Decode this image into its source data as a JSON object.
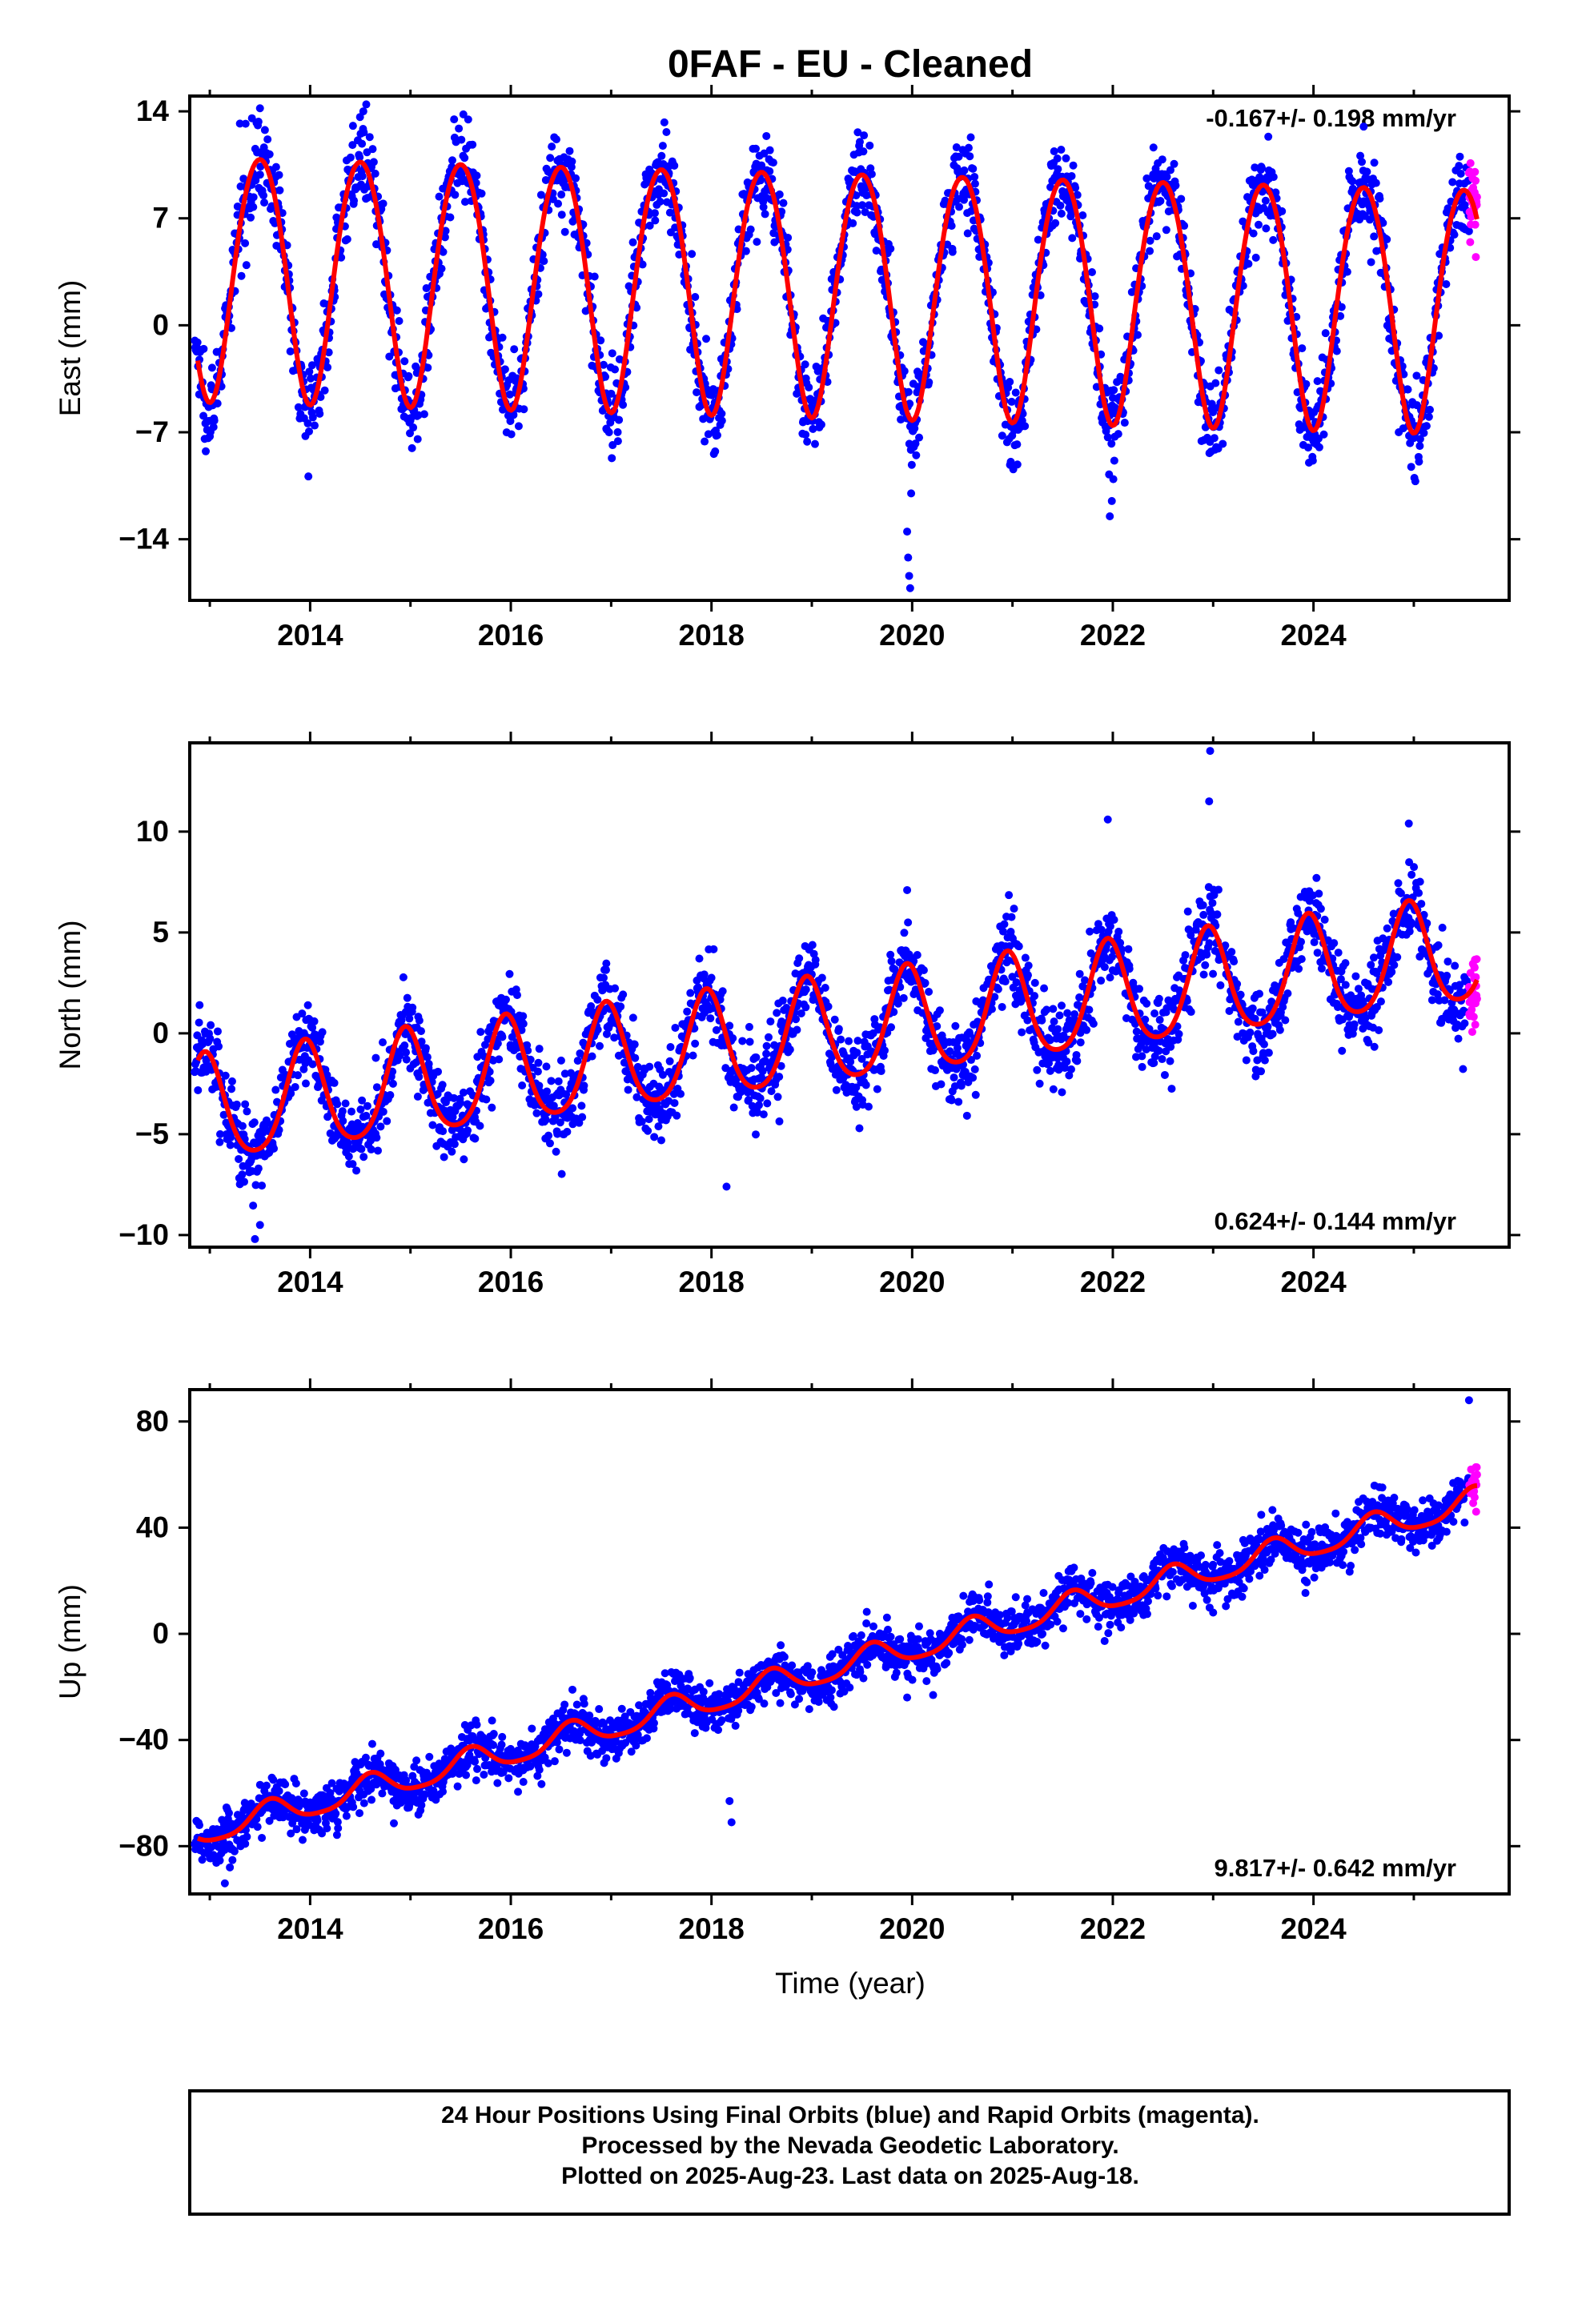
{
  "title": "0FAF  - EU - Cleaned",
  "footer": {
    "line1": "24 Hour Positions Using Final Orbits (blue) and Rapid Orbits (magenta).",
    "line2": "Processed by the Nevada Geodetic Laboratory.",
    "line3": "Plotted on 2025-Aug-23. Last data on 2025-Aug-18."
  },
  "colors": {
    "final_orbits": "#0000ff",
    "rapid_orbits": "#ff00ff",
    "model_fit": "#ff0000",
    "frame": "#000000"
  },
  "chart_data": [
    {
      "type": "scatter",
      "xlabel": "",
      "ylabel": "East (mm)",
      "xlim": [
        2012.8,
        2025.95
      ],
      "ylim": [
        -18,
        15
      ],
      "xticks": [
        2014,
        2016,
        2018,
        2020,
        2022,
        2024
      ],
      "yticks": [
        -14,
        -7,
        0,
        7,
        14
      ],
      "rate_label": "-0.167+/- 0.198 mm/yr",
      "rate_position": "top-right",
      "model": {
        "offset": 2.5,
        "trend": -0.167,
        "t0": 2019.2,
        "amp1": 8.0,
        "peak1": 0.5,
        "amp2": 0.6,
        "peak2": 0.25
      },
      "scatter": {
        "noise": 1.4,
        "points": 2400
      },
      "outliers": [
        {
          "x": 2019.95,
          "y": -13.5
        },
        {
          "x": 2019.96,
          "y": -15.2
        },
        {
          "x": 2019.97,
          "y": -16.4
        },
        {
          "x": 2019.98,
          "y": -17.2
        },
        {
          "x": 2019.99,
          "y": -11.0
        },
        {
          "x": 2021.97,
          "y": -12.5
        },
        {
          "x": 2021.99,
          "y": -11.5
        },
        {
          "x": 2013.3,
          "y": 13.2
        },
        {
          "x": 2013.5,
          "y": 14.2
        },
        {
          "x": 2014.53,
          "y": 14.0
        },
        {
          "x": 2024.5,
          "y": 13.0
        }
      ],
      "grid": false,
      "legend": "none"
    },
    {
      "type": "scatter",
      "xlabel": "",
      "ylabel": "North (mm)",
      "xlim": [
        2012.8,
        2025.95
      ],
      "ylim": [
        -10.6,
        14.4
      ],
      "xticks": [
        2014,
        2016,
        2018,
        2020,
        2022,
        2024
      ],
      "yticks": [
        -10,
        -5,
        0,
        5,
        10
      ],
      "rate_label": "0.624+/- 0.144 mm/yr",
      "rate_position": "bottom-right",
      "model": {
        "offset": 0.0,
        "trend": 0.624,
        "t0": 2019.2,
        "amp1": 2.6,
        "peak1": 0.95,
        "amp2": 0.4,
        "peak2": 0.45
      },
      "scatter": {
        "noise": 1.0,
        "points": 2400
      },
      "outliers": [
        {
          "x": 2013.45,
          "y": -10.2
        },
        {
          "x": 2013.5,
          "y": -9.5
        },
        {
          "x": 2021.95,
          "y": 10.6
        },
        {
          "x": 2022.96,
          "y": 11.5
        },
        {
          "x": 2022.97,
          "y": 14.0
        },
        {
          "x": 2024.95,
          "y": 10.4
        },
        {
          "x": 2019.95,
          "y": 7.1
        },
        {
          "x": 2018.15,
          "y": -7.6
        }
      ],
      "grid": false,
      "legend": "none"
    },
    {
      "type": "scatter",
      "xlabel": "Time (year)",
      "ylabel": "Up (mm)",
      "xlim": [
        2012.8,
        2025.95
      ],
      "ylim": [
        -98,
        92
      ],
      "xticks": [
        2014,
        2016,
        2018,
        2020,
        2022,
        2024
      ],
      "yticks": [
        -80,
        -40,
        0,
        40,
        80
      ],
      "rate_label": "9.817+/- 0.642 mm/yr",
      "rate_position": "bottom-right",
      "model": {
        "offset": -20.0,
        "trend": 9.817,
        "t0": 2018.5,
        "amp1": 5.0,
        "peak1": 0.6,
        "amp2": 1.0,
        "peak2": 0.1
      },
      "scatter": {
        "noise": 4.5,
        "points": 2400
      },
      "outliers": [
        {
          "x": 2018.2,
          "y": -71
        },
        {
          "x": 2018.18,
          "y": -63
        },
        {
          "x": 2013.15,
          "y": -94
        },
        {
          "x": 2013.2,
          "y": -88
        },
        {
          "x": 2019.95,
          "y": -24
        },
        {
          "x": 2023.0,
          "y": 8
        },
        {
          "x": 2025.55,
          "y": 88
        }
      ],
      "grid": false,
      "legend": "none"
    }
  ],
  "rapid_orbit_span": [
    2025.55,
    2025.63
  ]
}
